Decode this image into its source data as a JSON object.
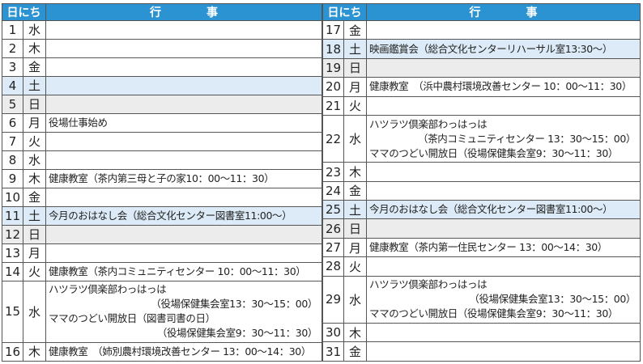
{
  "tables": [
    {
      "header": [
        "日にち",
        "行　　　　事"
      ],
      "rows": [
        {
          "day": "1",
          "weekday": "水",
          "events": []
        },
        {
          "day": "2",
          "weekday": "木",
          "events": []
        },
        {
          "day": "3",
          "weekday": "金",
          "events": []
        },
        {
          "day": "4",
          "weekday": "土",
          "events": []
        },
        {
          "day": "5",
          "weekday": "日",
          "events": []
        },
        {
          "day": "6",
          "weekday": "月",
          "events": [
            "役場仕事始め"
          ]
        },
        {
          "day": "7",
          "weekday": "火",
          "events": []
        },
        {
          "day": "8",
          "weekday": "水",
          "events": []
        },
        {
          "day": "9",
          "weekday": "木",
          "events": [
            "健康教室（茶内第三母と子の家10：00～11：30）"
          ]
        },
        {
          "day": "10",
          "weekday": "金",
          "events": []
        },
        {
          "day": "11",
          "weekday": "土",
          "events": [
            "今月のおはなし会（総合文化センター図書室11:00～）"
          ]
        },
        {
          "day": "12",
          "weekday": "日",
          "events": []
        },
        {
          "day": "13",
          "weekday": "月",
          "events": []
        },
        {
          "day": "14",
          "weekday": "火",
          "events": [
            "健康教室（茶内コミュニティセンター 10：00～11：30）"
          ]
        },
        {
          "day": "15",
          "weekday": "水",
          "events": [
            "ハツラツ倶楽部わっはっは",
            "（役場保健集会室13：30～15：00）",
            "ママのつどい開放日（図書司書の日）",
            "（役場保健集会室9：30～11：30）"
          ]
        },
        {
          "day": "16",
          "weekday": "木",
          "events": [
            "健康教室　（姉別農村環境改善センター 13：00～14：30）"
          ]
        }
      ]
    },
    {
      "header": [
        "日にち",
        "行　　　　事"
      ],
      "rows": [
        {
          "day": "17",
          "weekday": "金",
          "events": []
        },
        {
          "day": "18",
          "weekday": "土",
          "events": [
            "映画鑑賞会（総合文化センターリハーサル室13:30～）"
          ]
        },
        {
          "day": "19",
          "weekday": "日",
          "events": []
        },
        {
          "day": "20",
          "weekday": "月",
          "events": [
            "健康教室　（浜中農村環境改善センター 10：00～11：30）"
          ]
        },
        {
          "day": "21",
          "weekday": "火",
          "events": []
        },
        {
          "day": "22",
          "weekday": "水",
          "events": [
            "ハツラツ倶楽部わっはっは",
            "（茶内コミュニティセンター 13：30～15：00）",
            "ママのつどい開放日（役場保健集会室9：30～11：30）"
          ]
        },
        {
          "day": "23",
          "weekday": "木",
          "events": []
        },
        {
          "day": "24",
          "weekday": "金",
          "events": []
        },
        {
          "day": "25",
          "weekday": "土",
          "events": [
            "今月のおはなし会（総合文化センター図書室11:00～）"
          ]
        },
        {
          "day": "26",
          "weekday": "日",
          "events": []
        },
        {
          "day": "27",
          "weekday": "月",
          "events": [
            "健康教室（茶内第一住民センター 13：00～14：30）"
          ]
        },
        {
          "day": "28",
          "weekday": "火",
          "events": []
        },
        {
          "day": "29",
          "weekday": "水",
          "events": [
            "ハツラツ倶楽部わっはっは",
            "（役場保健集会室13：30～15：00）",
            "ママのつどい開放日（役場保健集会室9：30～11：30）"
          ]
        },
        {
          "day": "30",
          "weekday": "木",
          "events": []
        },
        {
          "day": "31",
          "weekday": "金",
          "events": []
        }
      ]
    }
  ]
}
